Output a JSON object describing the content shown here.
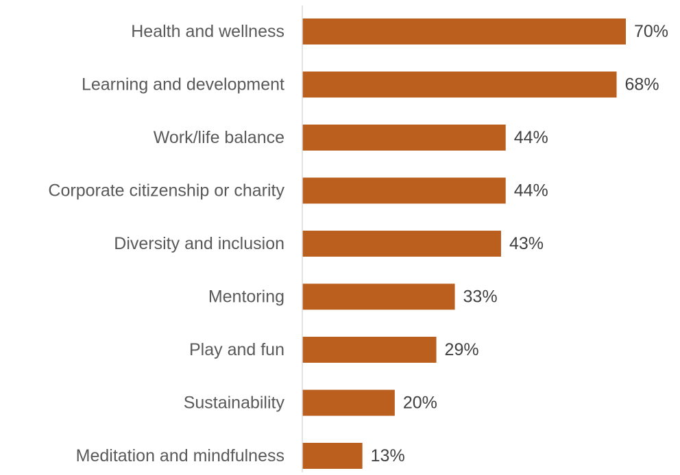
{
  "chart_data": {
    "type": "bar",
    "orientation": "horizontal",
    "categories": [
      "Health and wellness",
      "Learning and development",
      "Work/life balance",
      "Corporate citizenship or charity",
      "Diversity and inclusion",
      "Mentoring",
      "Play and fun",
      "Sustainability",
      "Meditation and mindfulness"
    ],
    "values": [
      70,
      68,
      44,
      44,
      43,
      33,
      29,
      20,
      13
    ],
    "value_labels": [
      "70%",
      "68%",
      "44%",
      "44%",
      "43%",
      "33%",
      "29%",
      "20%",
      "13%"
    ],
    "unit": "%",
    "xlim": [
      0,
      75
    ],
    "grid": false,
    "legend": "none",
    "bar_color": "#BA5F1E",
    "axis_color": "#D9D9D9"
  }
}
